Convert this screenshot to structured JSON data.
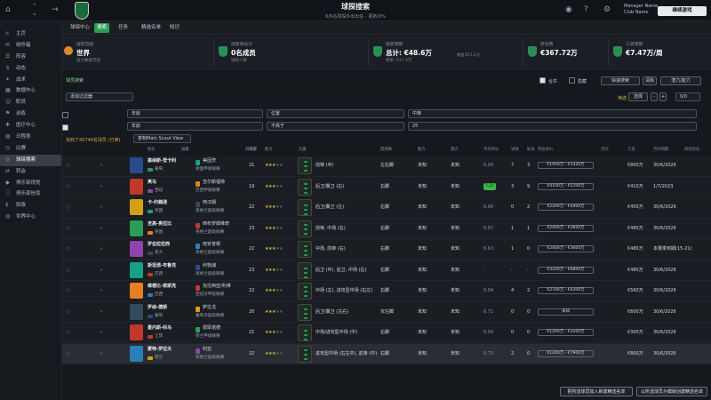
{
  "header": {
    "title": "球探搜索",
    "subtitle": "6/6名球探外出出任 - 更新/0%",
    "manager_name": "Manager Name",
    "manager_sub": "Club Name",
    "continue_label": "继续游戏"
  },
  "sidebar": {
    "items": [
      {
        "label": "主页",
        "icon": "⌂"
      },
      {
        "label": "收件箱",
        "icon": "✉"
      },
      {
        "label": "阵容",
        "icon": "☰"
      },
      {
        "label": "动态",
        "icon": "↯"
      },
      {
        "label": "战术",
        "icon": "✦"
      },
      {
        "label": "数据中心",
        "icon": "▦"
      },
      {
        "label": "职员",
        "icon": "☺"
      },
      {
        "label": "训练",
        "icon": "⚑"
      },
      {
        "label": "医疗中心",
        "icon": "✚"
      },
      {
        "label": "日程表",
        "icon": "▤"
      },
      {
        "label": "比赛",
        "icon": "◷"
      },
      {
        "label": "球探搜索",
        "icon": "◎",
        "active": true
      },
      {
        "label": "转会",
        "icon": "⇄"
      },
      {
        "label": "俱乐部视觉",
        "icon": "◆"
      },
      {
        "label": "俱乐部信息",
        "icon": "ⓘ"
      },
      {
        "label": "财政",
        "icon": "$"
      },
      {
        "label": "世界中心",
        "icon": "◍"
      }
    ]
  },
  "tabs": [
    {
      "label": "球探中心"
    },
    {
      "label": "搜索",
      "on": true
    },
    {
      "label": "任务"
    },
    {
      "label": "精选名单"
    },
    {
      "label": "知识"
    }
  ],
  "cards": [
    {
      "label": "搜索范围",
      "value": "世界",
      "sub": "极大数据范围"
    },
    {
      "label": "搜索球员计",
      "value": "0名成员",
      "sub": "球探人数"
    },
    {
      "label": "搜索预算",
      "value": "总计: €48.6万",
      "sub": "剩余: €17.0万",
      "right": "增加 €17.2万"
    },
    {
      "label": "转会费",
      "value": "€367.72万",
      "sub": ""
    },
    {
      "label": "工资预算",
      "value": "€7.47万/周",
      "sub": ""
    }
  ],
  "filters": {
    "list_label": "球员搜索",
    "include_label": "合并",
    "excl_label": "隐藏",
    "quick_search": "快速搜索",
    "reset": "清除",
    "dropdown_all": "添加过滤器",
    "status_label": "筛选",
    "select": "选择",
    "page": "0/0",
    "age": "年龄",
    "position": "位置",
    "pos_value": "中锋",
    "foot": "不高于",
    "foot_value": "25",
    "ability": "潜力/能力",
    "ability_value": "Player",
    "results": "找到了45746名球员 (已筛)",
    "view": "复制Main Scout View"
  },
  "columns": [
    "姓名",
    "国籍",
    "俱乐部",
    "年龄",
    "能力",
    "位置",
    "惯用脚",
    "能力",
    "潜力",
    "平均评分",
    "进球",
    "助攻",
    "转会身价",
    "合同",
    "工资",
    "合同到期",
    "转会状态"
  ],
  "rows": [
    {
      "name": "塞纳斯-登卡利",
      "nation": "葡萄",
      "club": "美因茨",
      "league": "德国甲级联赛",
      "age": "21",
      "stars": 3,
      "pos": "前锋 (中)",
      "foot": "左右脚",
      "abil": "未知",
      "pot": "未知",
      "avg": "6.94",
      "goals": "7",
      "assists": "3",
      "value": "€1950万 - €3320万",
      "wage": "€800万",
      "expiry": "30/6/2026",
      "status": "-"
    },
    {
      "name": "奥马",
      "nation": "西班",
      "club": "吉尔斯福特",
      "league": "巴西甲级联赛",
      "age": "19",
      "stars": 3,
      "pos": "后卫/翼卫 (右)",
      "foot": "右脚",
      "abil": "未知",
      "pot": "未知",
      "avg": "7.21",
      "goals": "3",
      "assists": "9",
      "value": "€4100万 - €5100万",
      "wage": "€410万",
      "expiry": "1/7/2023",
      "status": "-"
    },
    {
      "name": "卡-约翰逊",
      "nation": "英国",
      "club": "西汉姆",
      "league": "英格兰超级联赛",
      "age": "22",
      "stars": 3,
      "pos": "后卫/翼卫 (左)",
      "foot": "右脚",
      "abil": "未知",
      "pot": "未知",
      "avg": "6.66",
      "goals": "0",
      "assists": "2",
      "value": "€2200万 - €4400万",
      "wage": "€450万",
      "expiry": "30/6/2026",
      "status": "-"
    },
    {
      "name": "吉高-奥拉比",
      "nation": "英国",
      "club": "西布罗姆维奇",
      "league": "英格兰超级联赛",
      "age": "23",
      "stars": 3,
      "pos": "前锋, 中场 (右)",
      "foot": "右脚",
      "abil": "未知",
      "pot": "未知",
      "avg": "6.87",
      "goals": "1",
      "assists": "1",
      "value": "€2400万 - €3600万",
      "wage": "€480万",
      "expiry": "30/6/2026",
      "status": "-"
    },
    {
      "name": "罗伯拉拉西",
      "nation": "意大",
      "club": "南安普顿",
      "league": "英格兰超级联赛",
      "age": "22",
      "stars": 3,
      "pos": "中场, 前锋 (右)",
      "foot": "右脚",
      "abil": "未知",
      "pot": "未知",
      "avg": "6.63",
      "goals": "1",
      "assists": "0",
      "value": "€2400万 - €3600万",
      "wage": "€480万",
      "expiry": "本赛季到期(15-21)",
      "status": "-"
    },
    {
      "name": "斯坦诺-布鲁克",
      "nation": "巴西",
      "club": "利物浦",
      "league": "英格兰超级联赛",
      "age": "23",
      "stars": 3,
      "pos": "后卫 (中), 后卫, 中场 (右)",
      "foot": "右脚",
      "abil": "未知",
      "pot": "未知",
      "avg": "-",
      "goals": "-",
      "assists": "-",
      "value": "€3200万 - €6800万",
      "wage": "€480万",
      "expiry": "30/6/2026",
      "status": "-"
    },
    {
      "name": "维德比-修斯克",
      "nation": "巴西",
      "club": "瓦伦西亚/利维",
      "league": "西班牙甲级联赛",
      "age": "22",
      "stars": 3,
      "pos": "中场 (左), 进攻型中场 (右左)",
      "foot": "右脚",
      "abil": "未知",
      "pot": "未知",
      "avg": "6.94",
      "goals": "4",
      "assists": "2",
      "value": "€2700万 - €4300万",
      "wage": "€560万",
      "expiry": "30/6/2026",
      "status": "-"
    },
    {
      "name": "罗纳-德斯",
      "nation": "葡萄",
      "club": "萨拉戈",
      "league": "葡萄牙超级联赛",
      "age": "20",
      "stars": 3,
      "pos": "后卫/翼卫 (左右)",
      "foot": "仅左脚",
      "abil": "未知",
      "pot": "未知",
      "avg": "6.71",
      "goals": "0",
      "assists": "0",
      "value": "未知",
      "wage": "€600万",
      "expiry": "30/6/2026",
      "status": "-"
    },
    {
      "name": "曼内斯-科马",
      "nation": "土耳",
      "club": "费耶诺德",
      "league": "荷兰甲级联赛",
      "age": "21",
      "stars": 3,
      "pos": "中场/进攻型中场 (中)",
      "foot": "右脚",
      "abil": "未知",
      "pot": "未知",
      "avg": "6.94",
      "goals": "0",
      "assists": "0",
      "value": "€1200万 - €3200万",
      "wage": "€300万",
      "expiry": "30/6/2026",
      "status": "-"
    },
    {
      "name": "蒙特-罗拉夫",
      "nation": "荷兰",
      "club": "利亚",
      "league": "英格兰超级联赛",
      "age": "22",
      "stars": 3,
      "pos": "进攻型中场 (右左中), 前锋 (中)",
      "foot": "右脚",
      "abil": "未知",
      "pot": "未知",
      "avg": "6.73",
      "goals": "2",
      "assists": "0",
      "value": "€1200万 - €7900万",
      "wage": "€800万",
      "expiry": "30/6/2026",
      "status": "-"
    }
  ],
  "footer": {
    "btn1": "把所选球员加入新建精选名单",
    "btn2": "以所选球员为模版创建精选名单"
  },
  "colors": {
    "accent": "#2c9d55",
    "bg": "#15181d"
  }
}
